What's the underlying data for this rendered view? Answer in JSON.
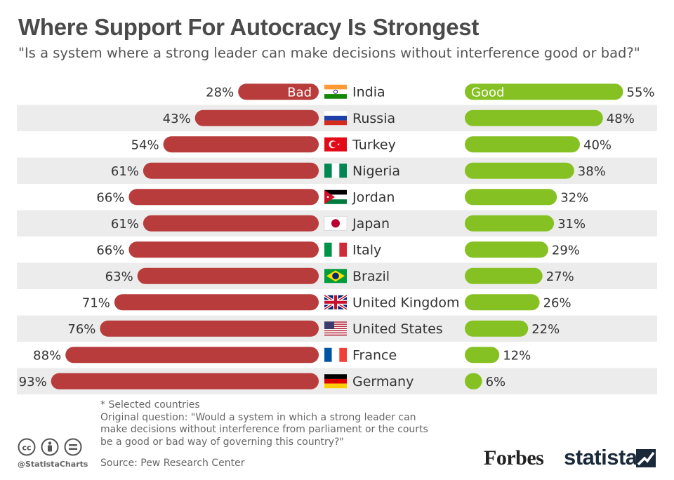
{
  "header": {
    "title": "Where Support For Autocracy Is Strongest",
    "subtitle": "\"Is a system where a strong leader can make decisions without interference good or bad?\""
  },
  "chart_data": {
    "type": "bar",
    "orientation": "horizontal-diverging",
    "categories": [
      "India",
      "Russia",
      "Turkey",
      "Nigeria",
      "Jordan",
      "Japan",
      "Italy",
      "Brazil",
      "United Kingdom",
      "United States",
      "France",
      "Germany"
    ],
    "series": [
      {
        "name": "Bad",
        "color": "#b83c3c",
        "values": [
          28,
          43,
          54,
          61,
          66,
          61,
          66,
          63,
          71,
          76,
          88,
          93
        ]
      },
      {
        "name": "Good",
        "color": "#86c123",
        "values": [
          55,
          48,
          40,
          38,
          32,
          31,
          29,
          27,
          26,
          22,
          12,
          6
        ]
      }
    ],
    "unit": "%",
    "grid": false,
    "legend": "inline-first-row"
  },
  "footnotes": {
    "selected": "* Selected countries",
    "question": "Original question: \"Would a system in which a strong leader can\nmake decisions without interference from parliament or the courts\nbe a good or bad way of governing this country?\""
  },
  "source": "Source: Pew Research Center",
  "branding": {
    "handle": "@StatistaCharts",
    "forbes": "Forbes",
    "statista": "statista"
  },
  "icons": [
    "cc-icon",
    "attribution-icon",
    "no-derivatives-icon"
  ],
  "colors": {
    "bad": "#b83c3c",
    "good": "#86c123",
    "stripe": "#ececec",
    "text": "#333333"
  }
}
